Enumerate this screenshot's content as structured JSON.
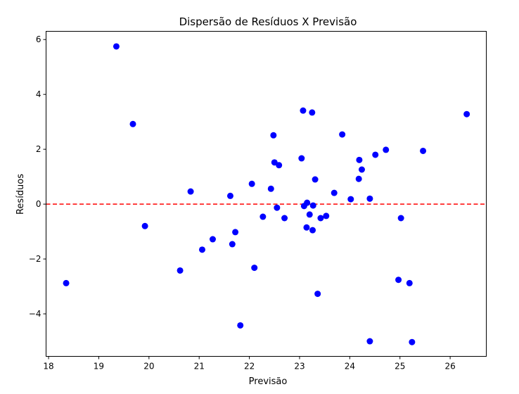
{
  "chart_data": {
    "type": "scatter",
    "title": "Dispersão de Resíduos X Previsão",
    "xlabel": "Previsão",
    "ylabel": "Resíduos",
    "xlim": [
      17.95,
      26.72
    ],
    "ylim": [
      -5.55,
      6.3
    ],
    "xticks": [
      18,
      19,
      20,
      21,
      22,
      23,
      24,
      25,
      26
    ],
    "yticks": [
      -4,
      -2,
      0,
      2,
      4,
      6
    ],
    "ytick_labels": [
      "−4",
      "−2",
      "0",
      "2",
      "4",
      "6"
    ],
    "grid": false,
    "colors": {
      "points": "#0000ff",
      "reference_line": "#ff0000"
    },
    "reference_line": {
      "y": 0,
      "style": "dashed"
    },
    "points": [
      {
        "x": 18.35,
        "y": -2.88
      },
      {
        "x": 19.35,
        "y": 5.75
      },
      {
        "x": 19.68,
        "y": 2.92
      },
      {
        "x": 19.92,
        "y": -0.8
      },
      {
        "x": 20.62,
        "y": -2.42
      },
      {
        "x": 20.83,
        "y": 0.46
      },
      {
        "x": 21.06,
        "y": -1.66
      },
      {
        "x": 21.27,
        "y": -1.28
      },
      {
        "x": 21.62,
        "y": 0.3
      },
      {
        "x": 21.66,
        "y": -1.46
      },
      {
        "x": 21.72,
        "y": -1.02
      },
      {
        "x": 21.82,
        "y": -4.42
      },
      {
        "x": 22.05,
        "y": 0.74
      },
      {
        "x": 22.1,
        "y": -2.32
      },
      {
        "x": 22.27,
        "y": -0.46
      },
      {
        "x": 22.43,
        "y": 0.56
      },
      {
        "x": 22.48,
        "y": 2.51
      },
      {
        "x": 22.5,
        "y": 1.52
      },
      {
        "x": 22.55,
        "y": -0.13
      },
      {
        "x": 22.59,
        "y": 1.42
      },
      {
        "x": 22.7,
        "y": -0.51
      },
      {
        "x": 23.04,
        "y": 1.67
      },
      {
        "x": 23.07,
        "y": 3.41
      },
      {
        "x": 23.09,
        "y": -0.07
      },
      {
        "x": 23.14,
        "y": -0.85
      },
      {
        "x": 23.15,
        "y": 0.05
      },
      {
        "x": 23.2,
        "y": -0.38
      },
      {
        "x": 23.25,
        "y": 3.34
      },
      {
        "x": 23.26,
        "y": -0.95
      },
      {
        "x": 23.27,
        "y": -0.05
      },
      {
        "x": 23.31,
        "y": 0.9
      },
      {
        "x": 23.36,
        "y": -3.27
      },
      {
        "x": 23.42,
        "y": -0.51
      },
      {
        "x": 23.53,
        "y": -0.43
      },
      {
        "x": 23.69,
        "y": 0.41
      },
      {
        "x": 23.85,
        "y": 2.54
      },
      {
        "x": 24.02,
        "y": 0.18
      },
      {
        "x": 24.18,
        "y": 0.92
      },
      {
        "x": 24.19,
        "y": 1.61
      },
      {
        "x": 24.24,
        "y": 1.26
      },
      {
        "x": 24.4,
        "y": 0.2
      },
      {
        "x": 24.4,
        "y": -5.0
      },
      {
        "x": 24.51,
        "y": 1.8
      },
      {
        "x": 24.72,
        "y": 1.98
      },
      {
        "x": 24.97,
        "y": -2.76
      },
      {
        "x": 25.02,
        "y": -0.51
      },
      {
        "x": 25.19,
        "y": -2.88
      },
      {
        "x": 25.24,
        "y": -5.03
      },
      {
        "x": 25.46,
        "y": 1.94
      },
      {
        "x": 26.33,
        "y": 3.28
      }
    ]
  }
}
